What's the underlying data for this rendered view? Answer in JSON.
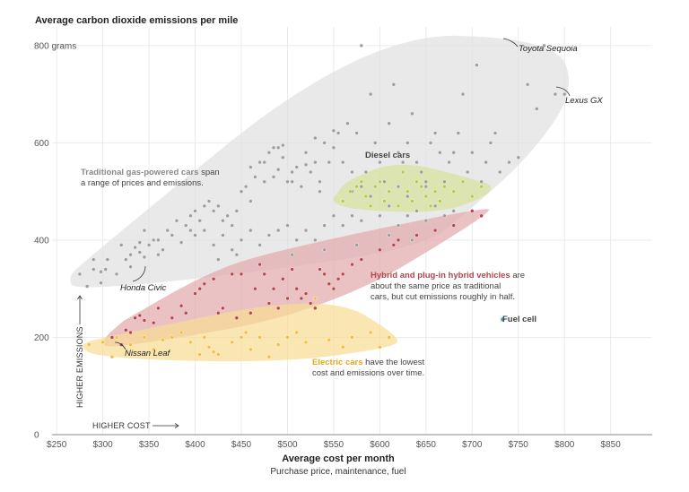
{
  "chart_data": {
    "type": "scatter",
    "title": "Average carbon dioxide emissions per mile",
    "xlabel": "Average cost per month",
    "xlabel_sub": "Purchase price, maintenance, fuel",
    "xlim": [
      245,
      895
    ],
    "ylim": [
      0,
      820
    ],
    "x_ticks": [
      {
        "value": 250,
        "label": "$250"
      },
      {
        "value": 300,
        "label": "$300"
      },
      {
        "value": 350,
        "label": "$350"
      },
      {
        "value": 400,
        "label": "$400"
      },
      {
        "value": 450,
        "label": "$450"
      },
      {
        "value": 500,
        "label": "$500"
      },
      {
        "value": 550,
        "label": "$550"
      },
      {
        "value": 600,
        "label": "$600"
      },
      {
        "value": 650,
        "label": "$650"
      },
      {
        "value": 700,
        "label": "$700"
      },
      {
        "value": 750,
        "label": "$750"
      },
      {
        "value": 800,
        "label": "$800"
      },
      {
        "value": 850,
        "label": "$850"
      }
    ],
    "y_ticks": [
      {
        "value": 0,
        "label": "0"
      },
      {
        "value": 200,
        "label": "200"
      },
      {
        "value": 400,
        "label": "400"
      },
      {
        "value": 600,
        "label": "600"
      },
      {
        "value": 800,
        "label": "800 grams"
      }
    ],
    "grid": true,
    "series": [
      {
        "key": "gas",
        "color": "#9e9e9e",
        "hull_color": "#e0e0e0",
        "label_bold": "Traditional gas-powered cars",
        "label_rest": " span",
        "label_line2": "a range of prices and emissions.",
        "points": [
          [
            275,
            330
          ],
          [
            283,
            305
          ],
          [
            290,
            340
          ],
          [
            298,
            335
          ],
          [
            303,
            340
          ],
          [
            298,
            312
          ],
          [
            290,
            360
          ],
          [
            305,
            360
          ],
          [
            315,
            330
          ],
          [
            325,
            360
          ],
          [
            330,
            370
          ],
          [
            335,
            385
          ],
          [
            340,
            375
          ],
          [
            345,
            365
          ],
          [
            350,
            390
          ],
          [
            355,
            400
          ],
          [
            360,
            400
          ],
          [
            365,
            380
          ],
          [
            370,
            420
          ],
          [
            380,
            440
          ],
          [
            390,
            430
          ],
          [
            395,
            450
          ],
          [
            400,
            460
          ],
          [
            405,
            440
          ],
          [
            410,
            470
          ],
          [
            415,
            480
          ],
          [
            420,
            460
          ],
          [
            425,
            470
          ],
          [
            430,
            440
          ],
          [
            435,
            450
          ],
          [
            440,
            430
          ],
          [
            445,
            460
          ],
          [
            450,
            500
          ],
          [
            455,
            510
          ],
          [
            460,
            480
          ],
          [
            465,
            530
          ],
          [
            470,
            560
          ],
          [
            475,
            520
          ],
          [
            480,
            580
          ],
          [
            485,
            530
          ],
          [
            490,
            590
          ],
          [
            495,
            570
          ],
          [
            500,
            520
          ],
          [
            505,
            540
          ],
          [
            510,
            550
          ],
          [
            515,
            510
          ],
          [
            520,
            580
          ],
          [
            525,
            540
          ],
          [
            530,
            560
          ],
          [
            535,
            520
          ],
          [
            540,
            600
          ],
          [
            545,
            560
          ],
          [
            550,
            590
          ],
          [
            555,
            620
          ],
          [
            560,
            560
          ],
          [
            565,
            640
          ],
          [
            570,
            540
          ],
          [
            575,
            620
          ],
          [
            580,
            800
          ],
          [
            585,
            540
          ],
          [
            590,
            700
          ],
          [
            595,
            600
          ],
          [
            600,
            560
          ],
          [
            605,
            520
          ],
          [
            610,
            640
          ],
          [
            615,
            720
          ],
          [
            620,
            580
          ],
          [
            625,
            560
          ],
          [
            630,
            600
          ],
          [
            635,
            660
          ],
          [
            640,
            560
          ],
          [
            645,
            540
          ],
          [
            650,
            520
          ],
          [
            655,
            600
          ],
          [
            660,
            620
          ],
          [
            665,
            580
          ],
          [
            670,
            520
          ],
          [
            675,
            560
          ],
          [
            680,
            580
          ],
          [
            685,
            620
          ],
          [
            690,
            700
          ],
          [
            695,
            540
          ],
          [
            700,
            580
          ],
          [
            705,
            760
          ],
          [
            710,
            520
          ],
          [
            715,
            560
          ],
          [
            720,
            600
          ],
          [
            725,
            620
          ],
          [
            730,
            540
          ],
          [
            740,
            560
          ],
          [
            750,
            570
          ],
          [
            760,
            720
          ],
          [
            770,
            670
          ],
          [
            778,
            800
          ],
          [
            790,
            700
          ],
          [
            800,
            700
          ],
          [
            320,
            390
          ],
          [
            330,
            345
          ],
          [
            340,
            395
          ],
          [
            360,
            370
          ],
          [
            375,
            410
          ],
          [
            385,
            395
          ],
          [
            400,
            410
          ],
          [
            410,
            420
          ],
          [
            420,
            390
          ],
          [
            430,
            410
          ],
          [
            440,
            380
          ],
          [
            450,
            400
          ],
          [
            460,
            420
          ],
          [
            470,
            390
          ],
          [
            480,
            410
          ],
          [
            490,
            420
          ],
          [
            500,
            430
          ],
          [
            510,
            400
          ],
          [
            520,
            420
          ],
          [
            530,
            400
          ],
          [
            540,
            430
          ],
          [
            550,
            450
          ],
          [
            560,
            430
          ],
          [
            570,
            450
          ],
          [
            580,
            440
          ],
          [
            590,
            470
          ],
          [
            600,
            450
          ],
          [
            610,
            470
          ],
          [
            620,
            430
          ],
          [
            630,
            450
          ],
          [
            640,
            460
          ],
          [
            650,
            440
          ],
          [
            660,
            470
          ],
          [
            670,
            450
          ],
          [
            680,
            460
          ],
          [
            560,
            480
          ],
          [
            570,
            500
          ],
          [
            580,
            510
          ],
          [
            590,
            490
          ],
          [
            600,
            520
          ],
          [
            610,
            500
          ],
          [
            620,
            510
          ],
          [
            630,
            490
          ],
          [
            640,
            520
          ],
          [
            650,
            510
          ],
          [
            460,
            550
          ],
          [
            475,
            560
          ],
          [
            490,
            545
          ],
          [
            505,
            520
          ],
          [
            520,
            555
          ],
          [
            535,
            500
          ],
          [
            485,
            590
          ],
          [
            495,
            595
          ],
          [
            530,
            610
          ],
          [
            550,
            625
          ],
          [
            345,
            420
          ],
          [
            395,
            420
          ],
          [
            425,
            360
          ],
          [
            445,
            370
          ],
          [
            470,
            350
          ],
          [
            505,
            370
          ],
          [
            540,
            380
          ],
          [
            575,
            390
          ],
          [
            610,
            410
          ],
          [
            635,
            400
          ]
        ]
      },
      {
        "key": "diesel",
        "color": "#b5c94a",
        "hull_color": "#d5e39a",
        "label_bold": "Diesel cars",
        "points": [
          [
            560,
            480
          ],
          [
            568,
            500
          ],
          [
            575,
            510
          ],
          [
            580,
            520
          ],
          [
            585,
            490
          ],
          [
            590,
            470
          ],
          [
            595,
            510
          ],
          [
            600,
            520
          ],
          [
            605,
            480
          ],
          [
            610,
            500
          ],
          [
            620,
            470
          ],
          [
            625,
            540
          ],
          [
            630,
            500
          ],
          [
            635,
            480
          ],
          [
            640,
            520
          ],
          [
            645,
            510
          ],
          [
            650,
            490
          ],
          [
            655,
            470
          ],
          [
            660,
            500
          ],
          [
            665,
            480
          ],
          [
            670,
            510
          ],
          [
            680,
            500
          ],
          [
            690,
            520
          ],
          [
            700,
            490
          ],
          [
            710,
            510
          ]
        ]
      },
      {
        "key": "hybrid",
        "color": "#b8454c",
        "hull_color": "#e2a8ab",
        "label_bold": "Hybrid and plug-in hybrid vehicles",
        "label_rest": " are",
        "label_line2": "about the same price as traditional",
        "label_line3": "cars, but cut emissions roughly in half.",
        "points": [
          [
            310,
            200
          ],
          [
            320,
            185
          ],
          [
            325,
            215
          ],
          [
            330,
            210
          ],
          [
            335,
            240
          ],
          [
            340,
            245
          ],
          [
            345,
            235
          ],
          [
            355,
            230
          ],
          [
            360,
            260
          ],
          [
            375,
            240
          ],
          [
            385,
            265
          ],
          [
            390,
            250
          ],
          [
            400,
            290
          ],
          [
            405,
            300
          ],
          [
            410,
            310
          ],
          [
            420,
            320
          ],
          [
            425,
            250
          ],
          [
            430,
            260
          ],
          [
            440,
            330
          ],
          [
            445,
            240
          ],
          [
            450,
            330
          ],
          [
            460,
            250
          ],
          [
            465,
            300
          ],
          [
            470,
            350
          ],
          [
            475,
            330
          ],
          [
            480,
            270
          ],
          [
            485,
            300
          ],
          [
            490,
            260
          ],
          [
            495,
            320
          ],
          [
            500,
            280
          ],
          [
            505,
            340
          ],
          [
            510,
            300
          ],
          [
            515,
            280
          ],
          [
            520,
            290
          ],
          [
            525,
            270
          ],
          [
            530,
            260
          ],
          [
            535,
            340
          ],
          [
            540,
            330
          ],
          [
            545,
            310
          ],
          [
            550,
            300
          ],
          [
            555,
            320
          ],
          [
            560,
            330
          ],
          [
            570,
            350
          ],
          [
            580,
            360
          ],
          [
            600,
            380
          ],
          [
            615,
            390
          ],
          [
            620,
            400
          ],
          [
            640,
            410
          ],
          [
            660,
            420
          ],
          [
            680,
            430
          ],
          [
            700,
            460
          ],
          [
            710,
            450
          ]
        ]
      },
      {
        "key": "electric",
        "color": "#f1bf3d",
        "hull_color": "#f8dc92",
        "label_bold": "Electric cars",
        "label_rest": " have the lowest",
        "label_line2": "cost and emissions over time.",
        "points": [
          [
            285,
            185
          ],
          [
            300,
            190
          ],
          [
            310,
            160
          ],
          [
            315,
            200
          ],
          [
            330,
            185
          ],
          [
            345,
            200
          ],
          [
            355,
            175
          ],
          [
            365,
            195
          ],
          [
            375,
            200
          ],
          [
            385,
            210
          ],
          [
            395,
            190
          ],
          [
            405,
            165
          ],
          [
            410,
            200
          ],
          [
            415,
            180
          ],
          [
            420,
            170
          ],
          [
            425,
            165
          ],
          [
            440,
            190
          ],
          [
            450,
            200
          ],
          [
            455,
            210
          ],
          [
            460,
            175
          ],
          [
            470,
            200
          ],
          [
            480,
            160
          ],
          [
            490,
            185
          ],
          [
            500,
            200
          ],
          [
            510,
            210
          ],
          [
            520,
            190
          ],
          [
            530,
            280
          ],
          [
            545,
            195
          ],
          [
            560,
            180
          ],
          [
            570,
            200
          ],
          [
            590,
            210
          ],
          [
            600,
            180
          ],
          [
            610,
            200
          ]
        ]
      },
      {
        "key": "fuelcell",
        "color": "#4a9fd8",
        "label_bold": "Fuel cell",
        "points": [
          [
            733,
            237
          ]
        ]
      }
    ],
    "labeled_cars": [
      {
        "name": "Toyota Sequoia",
        "x": 778,
        "y": 800
      },
      {
        "name": "Lexus GX",
        "x": 790,
        "y": 703
      },
      {
        "name": "Honda Civic",
        "x": 333,
        "y": 338
      },
      {
        "name": "Nissan Leaf",
        "x": 308,
        "y": 189
      }
    ],
    "direction_labels": {
      "x": "HIGHER COST",
      "y": "HIGHER EMISSIONS"
    }
  }
}
